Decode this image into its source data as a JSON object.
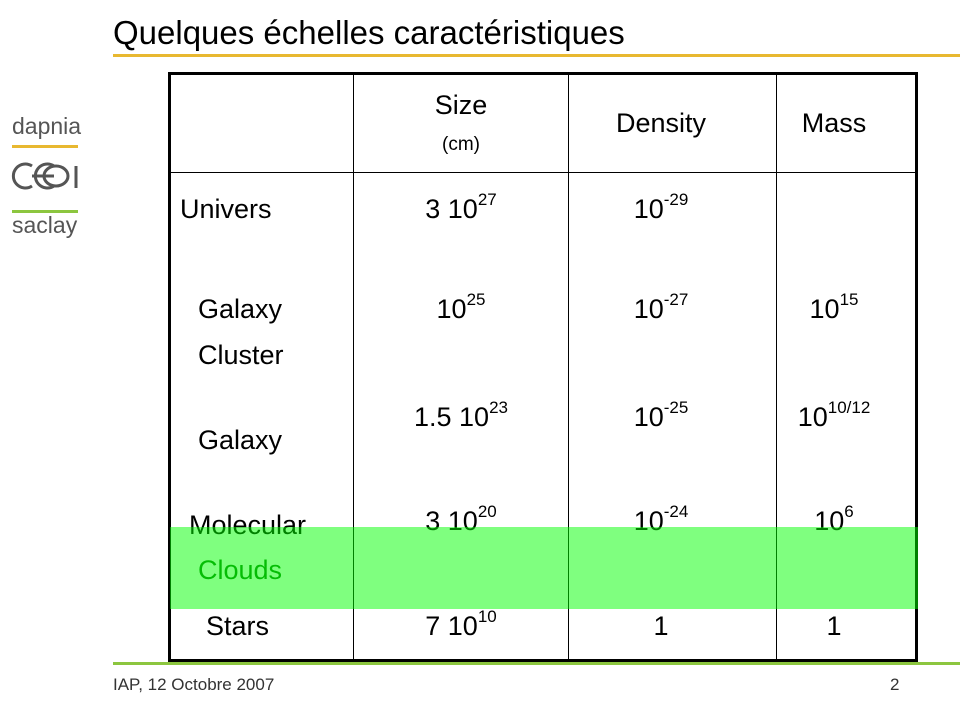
{
  "title": "Quelques échelles caractéristiques",
  "logo": {
    "top": "dapnia",
    "mark": "cea",
    "bottom": "saclay",
    "colors": {
      "top_line": "#e8b830",
      "bottom_line": "#8cc63f"
    }
  },
  "table": {
    "headers": [
      {
        "label": "",
        "unit": ""
      },
      {
        "label": "Size",
        "unit": "(cm)"
      },
      {
        "label": "Density",
        "unit": ""
      },
      {
        "label": "Mass",
        "unit": ""
      }
    ],
    "rows": [
      {
        "name": [
          "Univers"
        ],
        "size": {
          "pre": "3 10",
          "exp": "27"
        },
        "density": {
          "pre": "10",
          "exp": "-29"
        },
        "mass": {
          "pre": "",
          "exp": ""
        }
      },
      {
        "name": [
          "Galaxy",
          "Cluster"
        ],
        "size": {
          "pre": "10",
          "exp": "25"
        },
        "density": {
          "pre": "10",
          "exp": "-27"
        },
        "mass": {
          "pre": "10",
          "exp": "15"
        }
      },
      {
        "name": [
          "Galaxy"
        ],
        "size": {
          "pre": "1.5 10",
          "exp": "23"
        },
        "density": {
          "pre": "10",
          "exp": "-25"
        },
        "mass": {
          "pre": "10",
          "exp": "10/12"
        }
      },
      {
        "name": [
          "Molecular",
          "Clouds"
        ],
        "size": {
          "pre": "3 10",
          "exp": "20"
        },
        "density": {
          "pre": "10",
          "exp": "-24"
        },
        "mass": {
          "pre": "10",
          "exp": "6"
        },
        "highlighted": true
      },
      {
        "name": [
          "Stars"
        ],
        "size": {
          "pre": "7 10",
          "exp": "10"
        },
        "density": {
          "pre": "1",
          "exp": ""
        },
        "mass": {
          "pre": "1",
          "exp": ""
        }
      }
    ],
    "highlight_color": "#80ff80"
  },
  "footer": {
    "text": "IAP, 12 Octobre 2007",
    "page": "2"
  }
}
